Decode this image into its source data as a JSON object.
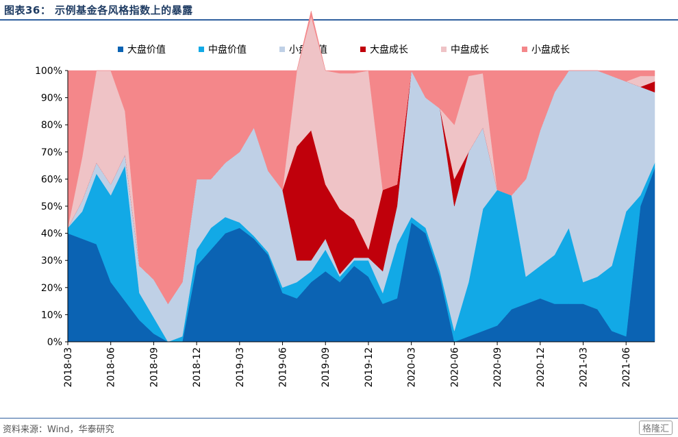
{
  "figure_title": "图表36：  示例基金各风格指数上的暴露",
  "source": "资料来源：Wind，华泰研究",
  "watermark": "格隆汇",
  "chart_data": {
    "type": "area",
    "stacked_percent": true,
    "legend_position": "top",
    "y_ticks": [
      "100%",
      "90%",
      "80%",
      "70%",
      "60%",
      "50%",
      "40%",
      "30%",
      "20%",
      "10%",
      "0%"
    ],
    "ylim": [
      0,
      100
    ],
    "x_ticks": [
      "2018-03",
      "2018-06",
      "2018-09",
      "2018-12",
      "2019-03",
      "2019-06",
      "2019-09",
      "2019-12",
      "2020-03",
      "2020-06",
      "2020-09",
      "2020-12",
      "2021-03",
      "2021-06"
    ],
    "x": [
      "2018-03",
      "2018-04",
      "2018-05",
      "2018-06",
      "2018-07",
      "2018-08",
      "2018-09",
      "2018-10",
      "2018-11",
      "2018-12",
      "2019-01",
      "2019-02",
      "2019-03",
      "2019-04",
      "2019-05",
      "2019-06",
      "2019-07",
      "2019-08",
      "2019-09",
      "2019-10",
      "2019-11",
      "2019-12",
      "2020-01",
      "2020-02",
      "2020-03",
      "2020-04",
      "2020-05",
      "2020-06",
      "2020-07",
      "2020-08",
      "2020-09",
      "2020-10",
      "2020-11",
      "2020-12",
      "2021-01",
      "2021-02",
      "2021-03",
      "2021-04",
      "2021-05",
      "2021-06",
      "2021-07",
      "2021-08"
    ],
    "series": [
      {
        "name": "大盘价值",
        "color": "#0b63b3",
        "values": [
          40,
          38,
          36,
          22,
          15,
          8,
          3,
          0,
          0,
          28,
          34,
          40,
          42,
          38,
          32,
          18,
          16,
          22,
          26,
          22,
          28,
          24,
          14,
          16,
          44,
          40,
          24,
          0,
          2,
          4,
          6,
          12,
          14,
          16,
          14,
          14,
          14,
          12,
          4,
          2,
          50,
          64
        ]
      },
      {
        "name": "中盘价值",
        "color": "#12a9e6",
        "values": [
          2,
          10,
          26,
          32,
          50,
          10,
          6,
          0,
          2,
          6,
          8,
          6,
          2,
          1,
          1,
          2,
          6,
          4,
          8,
          2,
          2,
          6,
          4,
          20,
          2,
          2,
          2,
          4,
          20,
          45,
          50,
          42,
          10,
          12,
          18,
          28,
          8,
          12,
          24,
          46,
          4,
          2
        ]
      },
      {
        "name": "小盘价值",
        "color": "#bfd0e6",
        "values": [
          0,
          4,
          4,
          4,
          4,
          10,
          14,
          14,
          20,
          26,
          18,
          20,
          26,
          40,
          30,
          36,
          8,
          4,
          4,
          1,
          1,
          1,
          8,
          14,
          54,
          48,
          60,
          46,
          48,
          30,
          0,
          0,
          36,
          50,
          60,
          58,
          78,
          76,
          70,
          48,
          40,
          26
        ]
      },
      {
        "name": "大盘成长",
        "color": "#c0000b",
        "values": [
          0,
          0,
          0,
          0,
          0,
          0,
          0,
          0,
          0,
          0,
          0,
          0,
          0,
          0,
          0,
          0,
          42,
          48,
          20,
          24,
          14,
          3,
          30,
          8,
          0,
          0,
          0,
          10,
          0,
          0,
          0,
          0,
          0,
          0,
          0,
          0,
          0,
          0,
          0,
          0,
          0,
          4
        ]
      },
      {
        "name": "中盘成长",
        "color": "#efc3c6",
        "values": [
          0,
          16,
          34,
          42,
          16,
          0,
          0,
          0,
          0,
          0,
          0,
          0,
          0,
          0,
          0,
          0,
          28,
          42,
          42,
          50,
          54,
          66,
          0,
          0,
          0,
          0,
          0,
          20,
          28,
          20,
          0,
          0,
          0,
          0,
          0,
          0,
          0,
          0,
          0,
          0,
          4,
          2
        ]
      },
      {
        "name": "小盘成长",
        "color": "#f4878a",
        "values": [
          58,
          32,
          0,
          0,
          15,
          72,
          77,
          86,
          78,
          40,
          40,
          34,
          30,
          21,
          37,
          44,
          0,
          2,
          0,
          1,
          1,
          0,
          44,
          42,
          0,
          10,
          14,
          20,
          2,
          1,
          44,
          46,
          40,
          22,
          8,
          0,
          0,
          0,
          2,
          4,
          2,
          2
        ]
      }
    ]
  }
}
